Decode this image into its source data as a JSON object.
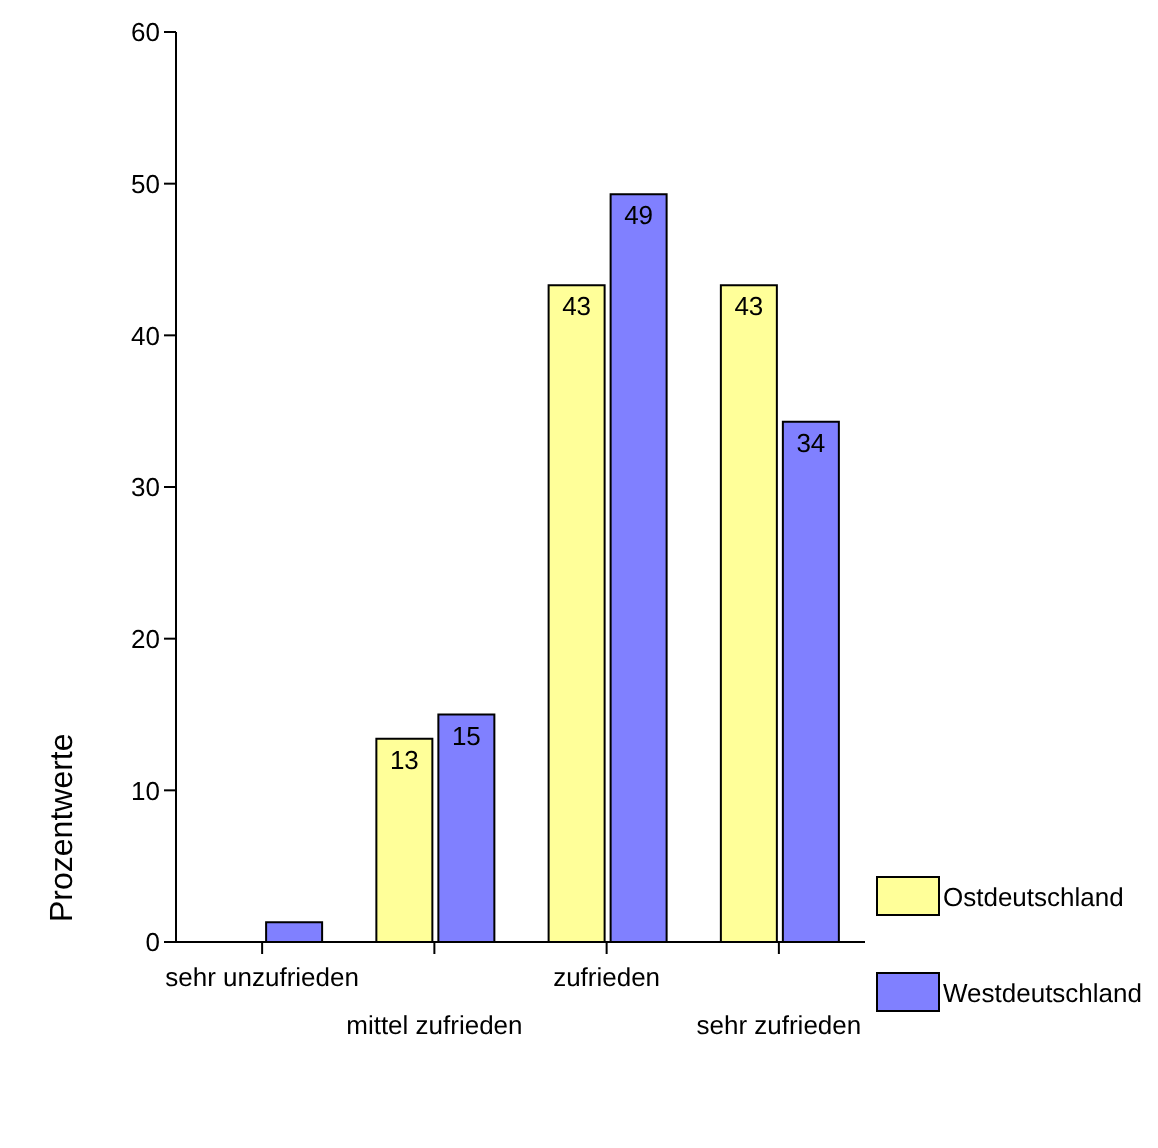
{
  "chart_data": {
    "type": "bar",
    "ylabel": "Prozentwerte",
    "categories": [
      "sehr unzufrieden",
      "mittel zufrieden",
      "zufrieden",
      "sehr zufrieden"
    ],
    "series": [
      {
        "name": "Ostdeutschland",
        "color": "#ffff99",
        "values": [
          0,
          13.4,
          43.3,
          43.3
        ],
        "value_labels": [
          null,
          "13",
          "43",
          "43"
        ]
      },
      {
        "name": "Westdeutschland",
        "color": "#8080ff",
        "values": [
          1.3,
          15,
          49.3,
          34.3
        ],
        "value_labels": [
          null,
          "15",
          "49",
          "34"
        ]
      }
    ],
    "ylim": [
      0,
      60
    ],
    "yticks": [
      0,
      10,
      20,
      30,
      40,
      50,
      60
    ],
    "grid": false,
    "legend": "bottom right"
  }
}
